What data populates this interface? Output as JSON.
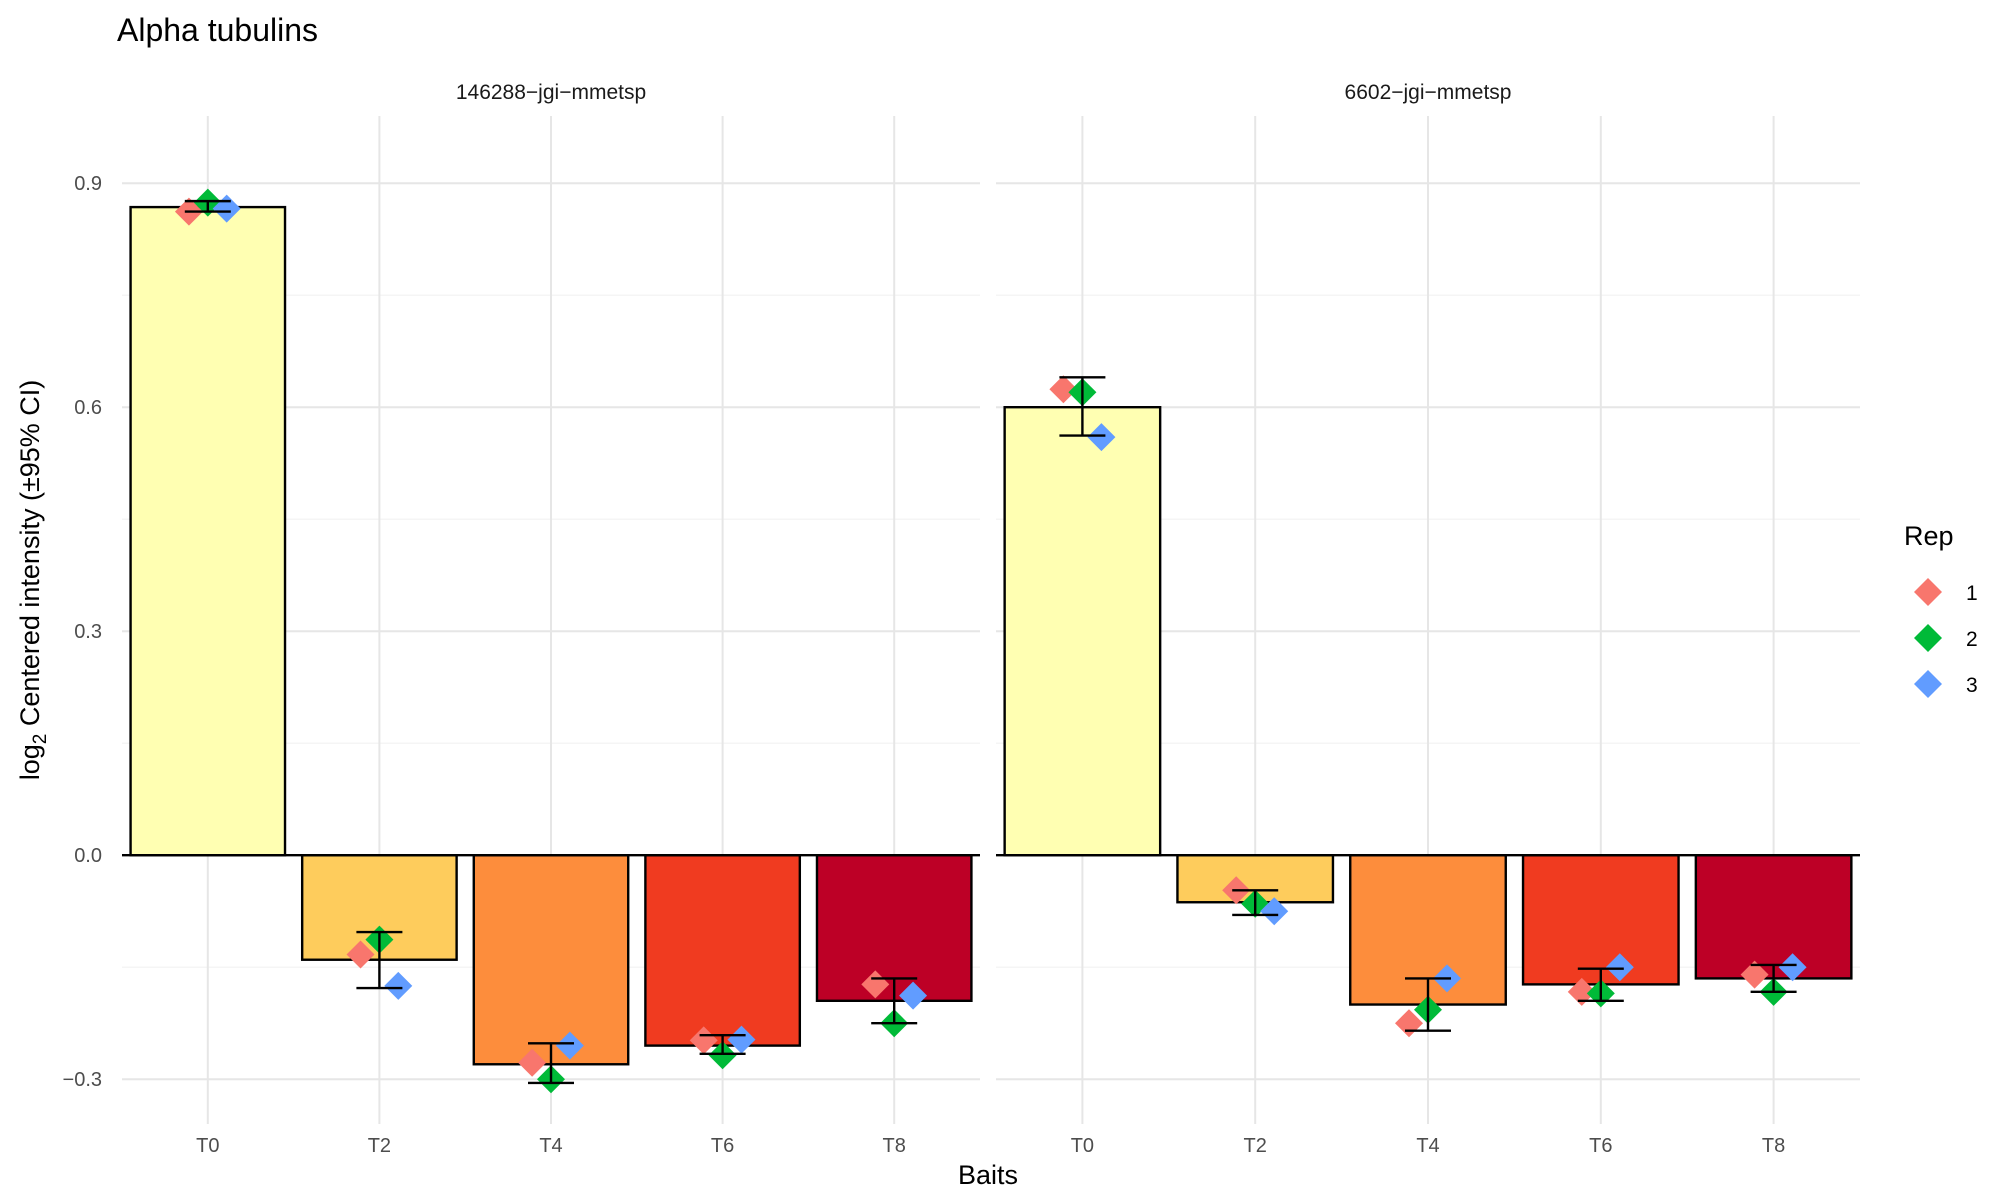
{
  "chart_data": {
    "type": "bar",
    "title": "Alpha tubulins",
    "xlabel": "Baits",
    "ylabel": {
      "prefix": "log",
      "sub": "2",
      "rest": " Centered intensity (±95% CI)"
    },
    "ylim": [
      -0.36,
      0.99
    ],
    "yticks": [
      -0.3,
      0.0,
      0.3,
      0.6,
      0.9
    ],
    "ytick_labels": [
      "−0.3",
      "0.0",
      "0.3",
      "0.6",
      "0.9"
    ],
    "categories": [
      "T0",
      "T2",
      "T4",
      "T6",
      "T8"
    ],
    "bar_colors": [
      "#FFFFB2",
      "#FECC5C",
      "#FD8D3C",
      "#F03B20",
      "#BD0026"
    ],
    "grid": true,
    "legend": {
      "title": "Rep",
      "position": "right",
      "items": [
        {
          "label": "1",
          "color": "#F8766D"
        },
        {
          "label": "2",
          "color": "#00BA38"
        },
        {
          "label": "3",
          "color": "#619CFF"
        }
      ]
    },
    "panels": [
      {
        "name": "146288−jgi−mmetsp",
        "bars": [
          0.868,
          -0.14,
          -0.28,
          -0.255,
          -0.195
        ],
        "ci": [
          [
            0.862,
            0.876
          ],
          [
            -0.178,
            -0.103
          ],
          [
            -0.305,
            -0.252
          ],
          [
            -0.266,
            -0.241
          ],
          [
            -0.225,
            -0.165
          ]
        ],
        "reps": [
          [
            0.862,
            0.874,
            0.866
          ],
          [
            -0.133,
            -0.113,
            -0.175
          ],
          [
            -0.278,
            -0.3,
            -0.255
          ],
          [
            -0.248,
            -0.268,
            -0.247
          ],
          [
            -0.173,
            -0.225,
            -0.188
          ]
        ]
      },
      {
        "name": "6602−jgi−mmetsp",
        "bars": [
          0.6,
          -0.063,
          -0.2,
          -0.173,
          -0.165
        ],
        "ci": [
          [
            0.562,
            0.64
          ],
          [
            -0.08,
            -0.047
          ],
          [
            -0.235,
            -0.165
          ],
          [
            -0.195,
            -0.152
          ],
          [
            -0.183,
            -0.147
          ]
        ],
        "reps": [
          [
            0.624,
            0.62,
            0.56
          ],
          [
            -0.047,
            -0.065,
            -0.075
          ],
          [
            -0.225,
            -0.207,
            -0.165
          ],
          [
            -0.183,
            -0.185,
            -0.15
          ],
          [
            -0.16,
            -0.183,
            -0.15
          ]
        ]
      }
    ]
  }
}
